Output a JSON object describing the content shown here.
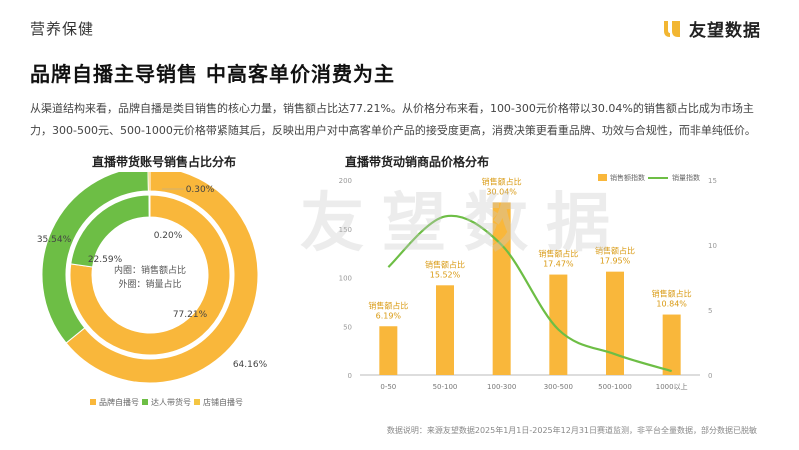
{
  "section_tag": "营养保健",
  "logo": {
    "text": "友望数据",
    "color": "#F2B632"
  },
  "headline": "品牌自播主导销售  中高客单价消费为主",
  "intro": "从渠道结构来看，品牌自播是类目销售的核心力量，销售额占比达77.21%。从价格分布来看，100-300元价格带以30.04%的销售额占比成为市场主力，300-500元、500-1000元价格带紧随其后，反映出用户对中高客单价产品的接受度更高，消费决策更看重品牌、功效与合规性，而非单纯低价。",
  "watermark": "友望数据",
  "footnote": "数据说明：来源友望数据2025年1月1日-2025年12月31日赛道监测，非平台全量数据，部分数据已脱敏",
  "colors": {
    "brand": "#F9B73B",
    "talent": "#6DBE45",
    "store": "#F4C542",
    "bar": "#F9B73B",
    "line": "#6DBE45"
  },
  "chart_data": [
    {
      "type": "pie",
      "title": "直播带货账号销售占比分布",
      "center_labels": [
        "内圈：销售额占比",
        "外圈：销量占比"
      ],
      "legend": [
        "品牌自播号",
        "达人带货号",
        "店铺自播号"
      ],
      "rings": [
        {
          "name": "销售额占比",
          "values": [
            77.21,
            22.59,
            0.2
          ],
          "labels": [
            "77.21%",
            "22.59%",
            "0.20%"
          ]
        },
        {
          "name": "销量占比",
          "values": [
            64.16,
            35.54,
            0.3
          ],
          "labels": [
            "64.16%",
            "35.54%",
            "0.30%"
          ]
        }
      ]
    },
    {
      "type": "bar",
      "title": "直播带货动销商品价格分布",
      "categories": [
        "0-50",
        "50-100",
        "100-300",
        "300-500",
        "500-1000",
        "1000以上"
      ],
      "series": [
        {
          "name": "销售额指数",
          "type": "bar",
          "axis": "left",
          "values": [
            50,
            92,
            177,
            103,
            106,
            62
          ]
        },
        {
          "name": "销量指数",
          "type": "line",
          "axis": "right",
          "values": [
            8.3,
            12.2,
            10.0,
            3.5,
            1.6,
            0.3
          ]
        }
      ],
      "bar_labels": [
        {
          "label": "销售额占比",
          "value": "6.19%"
        },
        {
          "label": "销售额占比",
          "value": "15.52%"
        },
        {
          "label": "销售额占比",
          "value": "30.04%"
        },
        {
          "label": "销售额占比",
          "value": "17.47%"
        },
        {
          "label": "销售额占比",
          "value": "17.95%"
        },
        {
          "label": "销售额占比",
          "value": "10.84%"
        }
      ],
      "ylim_left": [
        0,
        200
      ],
      "yticks_left": [
        "0",
        "50",
        "100",
        "150",
        "200"
      ],
      "ylim_right": [
        0,
        15
      ],
      "yticks_right": [
        "0",
        "5",
        "10",
        "15"
      ],
      "legend_position": "top-right",
      "grid": false
    }
  ]
}
